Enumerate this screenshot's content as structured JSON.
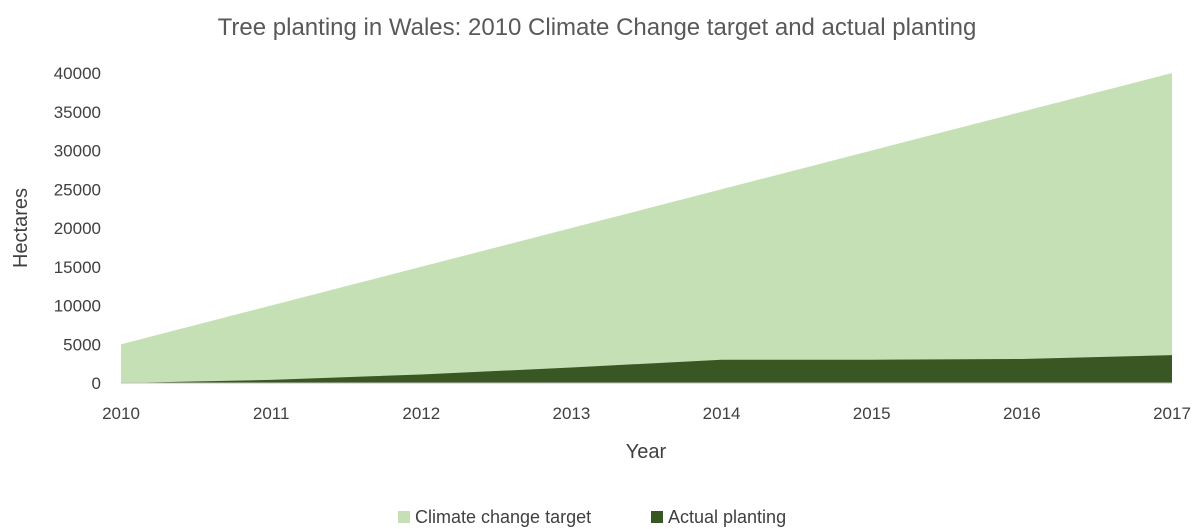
{
  "chart_data": {
    "type": "area",
    "title": "Tree planting in Wales: 2010 Climate Change target and actual planting",
    "xlabel": "Year",
    "ylabel": "Hectares",
    "categories": [
      "2010",
      "2011",
      "2012",
      "2013",
      "2014",
      "2015",
      "2016",
      "2017"
    ],
    "y_ticks": [
      "0",
      "5000",
      "10000",
      "15000",
      "20000",
      "25000",
      "30000",
      "35000",
      "40000"
    ],
    "ylim": [
      0,
      40000
    ],
    "grid": false,
    "legend_position": "bottom",
    "series": [
      {
        "name": "Climate change target",
        "color": "#c5e0b4",
        "values": [
          5000,
          10000,
          15000,
          20000,
          25000,
          30000,
          35000,
          40000
        ]
      },
      {
        "name": "Actual planting",
        "color": "#385723",
        "values": [
          0,
          400,
          1100,
          2000,
          3000,
          3000,
          3100,
          3600
        ]
      }
    ]
  }
}
